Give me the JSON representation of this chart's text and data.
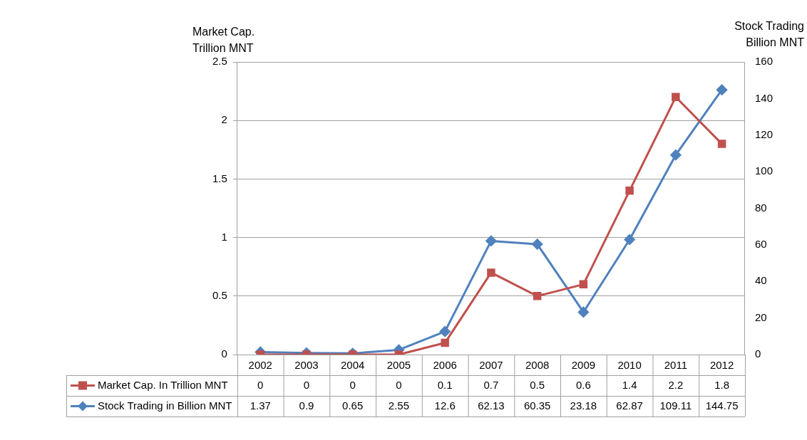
{
  "chart_data": {
    "type": "line",
    "ylabel": "Market Cap.\nTrillion MNT",
    "y2label": "Stock Trading\nBillion MNT",
    "categories": [
      "2002",
      "2003",
      "2004",
      "2005",
      "2006",
      "2007",
      "2008",
      "2009",
      "2010",
      "2011",
      "2012"
    ],
    "series": [
      {
        "name": "Market Cap. In Trillion MNT",
        "color": "#c0504d",
        "marker": "square",
        "values": [
          0,
          0,
          0,
          0,
          0.1,
          0.7,
          0.5,
          0.6,
          1.4,
          2.2,
          1.8
        ]
      },
      {
        "name": "Stock Trading in Billion MNT",
        "color": "#4f81bd",
        "marker": "diamond",
        "axis": "y2",
        "values": [
          1.37,
          0.9,
          0.65,
          2.55,
          12.6,
          62.13,
          60.35,
          23.18,
          62.87,
          109.11,
          144.75
        ]
      }
    ],
    "ylim": [
      0,
      2.5
    ],
    "yticks": [
      0,
      0.5,
      1,
      1.5,
      2,
      2.5
    ],
    "y2lim": [
      0,
      160
    ],
    "y2ticks": [
      0,
      20,
      40,
      60,
      80,
      100,
      120,
      140,
      160
    ],
    "grid": "y",
    "legend": "bottom",
    "data_labels": true,
    "line_style": "solid"
  }
}
